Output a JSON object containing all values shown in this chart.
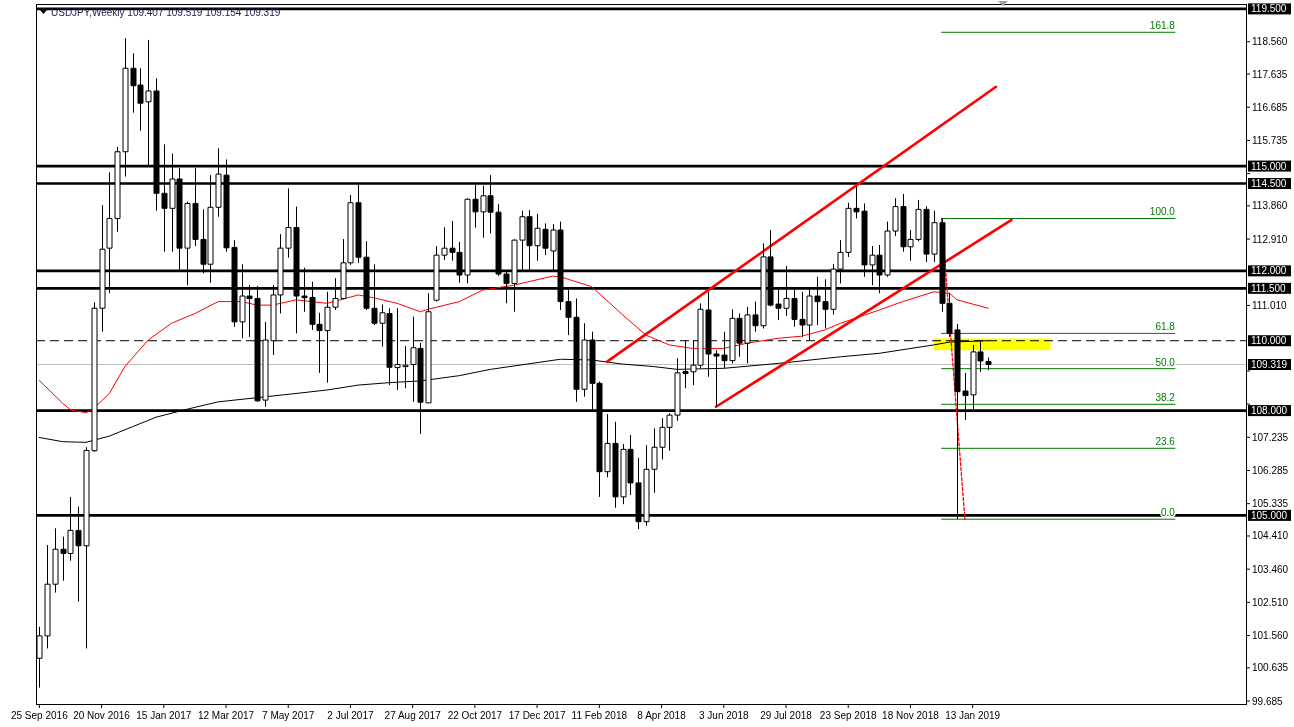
{
  "chart_data": {
    "type": "candlestick",
    "title": "USDJPY,Weekly 109.407 109.519 109.154 109.319",
    "color": "#000000",
    "xlim": [
      "2016-09-22",
      "2019-09-16"
    ],
    "ylim": [
      99.6,
      119.64
    ],
    "xticks": [
      {
        "value": "2016-09-25",
        "label": "25 Sep 2016"
      },
      {
        "value": "2016-11-20",
        "label": "20 Nov 2016"
      },
      {
        "value": "2017-01-15",
        "label": "15 Jan 2017"
      },
      {
        "value": "2017-03-12",
        "label": "12 Mar 2017"
      },
      {
        "value": "2017-05-07",
        "label": "7 May 2017"
      },
      {
        "value": "2017-07-02",
        "label": "2 Jul 2017"
      },
      {
        "value": "2017-08-27",
        "label": "27 Aug 2017"
      },
      {
        "value": "2017-10-22",
        "label": "22 Oct 2017"
      },
      {
        "value": "2017-12-17",
        "label": "17 Dec 2017"
      },
      {
        "value": "2018-02-11",
        "label": "11 Feb 2018"
      },
      {
        "value": "2018-04-08",
        "label": "8 Apr 2018"
      },
      {
        "value": "2018-06-03",
        "label": "3 Jun 2018"
      },
      {
        "value": "2018-07-29",
        "label": "29 Jul 2018"
      },
      {
        "value": "2018-09-23",
        "label": "23 Sep 2018"
      },
      {
        "value": "2018-11-18",
        "label": "18 Nov 2018"
      },
      {
        "value": "2019-01-13",
        "label": "13 Jan 2019"
      }
    ],
    "yticks": [
      {
        "value": 118.56,
        "label": "118.560"
      },
      {
        "value": 117.635,
        "label": "117.635"
      },
      {
        "value": 116.685,
        "label": "116.685"
      },
      {
        "value": 115.735,
        "label": "115.735"
      },
      {
        "value": 114.785,
        "label": null
      },
      {
        "value": 113.86,
        "label": "113.860"
      },
      {
        "value": 112.91,
        "label": "112.910"
      },
      {
        "value": 111.01,
        "label": "111.010"
      },
      {
        "value": 109.135,
        "label": null
      },
      {
        "value": 108.185,
        "label": null
      },
      {
        "value": 107.235,
        "label": "107.235"
      },
      {
        "value": 106.285,
        "label": "106.285"
      },
      {
        "value": 105.335,
        "label": "105.335"
      },
      {
        "value": 104.41,
        "label": "104.410"
      },
      {
        "value": 103.46,
        "label": "103.460"
      },
      {
        "value": 102.51,
        "label": "102.510"
      },
      {
        "value": 101.56,
        "label": "101.560"
      },
      {
        "value": 100.635,
        "label": "100.635"
      },
      {
        "value": 99.685,
        "label": "99.685"
      }
    ],
    "ref_lines": [
      {
        "axis": "y",
        "value": 119.5,
        "label": "119.500",
        "color": "#000000"
      },
      {
        "axis": "y",
        "value": 115,
        "label": "115.000",
        "color": "#000000"
      },
      {
        "axis": "y",
        "value": 114.5,
        "label": "114.500",
        "color": "#000000"
      },
      {
        "axis": "y",
        "value": 112,
        "label": "112.000",
        "color": "#000000"
      },
      {
        "axis": "y",
        "value": 111.5,
        "label": "111.500",
        "color": "#000000"
      },
      {
        "axis": "y",
        "value": 110,
        "label": "110.000",
        "color": "#000000",
        "line_style": "dashed"
      },
      {
        "axis": "y",
        "value": 109.319,
        "label": "109.319",
        "color": "#c0c0c0"
      },
      {
        "axis": "y",
        "value": 108,
        "label": "108.000",
        "color": "#000000"
      },
      {
        "axis": "y",
        "value": 105,
        "label": "105.000",
        "color": "#000000"
      }
    ],
    "x": [
      "2016-09-25",
      "2016-10-02",
      "2016-10-09",
      "2016-10-16",
      "2016-10-23",
      "2016-10-30",
      "2016-11-06",
      "2016-11-13",
      "2016-11-20",
      "2016-11-27",
      "2016-12-04",
      "2016-12-11",
      "2016-12-18",
      "2016-12-25",
      "2017-01-01",
      "2017-01-08",
      "2017-01-15",
      "2017-01-22",
      "2017-01-29",
      "2017-02-05",
      "2017-02-12",
      "2017-02-19",
      "2017-02-26",
      "2017-03-05",
      "2017-03-12",
      "2017-03-19",
      "2017-03-26",
      "2017-04-02",
      "2017-04-09",
      "2017-04-16",
      "2017-04-23",
      "2017-04-30",
      "2017-05-07",
      "2017-05-14",
      "2017-05-21",
      "2017-05-28",
      "2017-06-04",
      "2017-06-11",
      "2017-06-18",
      "2017-06-25",
      "2017-07-02",
      "2017-07-09",
      "2017-07-16",
      "2017-07-23",
      "2017-07-30",
      "2017-08-06",
      "2017-08-13",
      "2017-08-20",
      "2017-08-27",
      "2017-09-03",
      "2017-09-10",
      "2017-09-17",
      "2017-09-24",
      "2017-10-01",
      "2017-10-08",
      "2017-10-15",
      "2017-10-22",
      "2017-10-29",
      "2017-11-05",
      "2017-11-12",
      "2017-11-19",
      "2017-11-26",
      "2017-12-03",
      "2017-12-10",
      "2017-12-17",
      "2017-12-24",
      "2017-12-31",
      "2018-01-07",
      "2018-01-14",
      "2018-01-21",
      "2018-01-28",
      "2018-02-04",
      "2018-02-11",
      "2018-02-18",
      "2018-02-25",
      "2018-03-04",
      "2018-03-11",
      "2018-03-18",
      "2018-03-25",
      "2018-04-01",
      "2018-04-08",
      "2018-04-15",
      "2018-04-22",
      "2018-04-29",
      "2018-05-06",
      "2018-05-13",
      "2018-05-20",
      "2018-05-27",
      "2018-06-03",
      "2018-06-10",
      "2018-06-17",
      "2018-06-24",
      "2018-07-01",
      "2018-07-08",
      "2018-07-15",
      "2018-07-22",
      "2018-07-29",
      "2018-08-05",
      "2018-08-12",
      "2018-08-19",
      "2018-08-26",
      "2018-09-02",
      "2018-09-09",
      "2018-09-16",
      "2018-09-23",
      "2018-09-30",
      "2018-10-07",
      "2018-10-14",
      "2018-10-21",
      "2018-10-28",
      "2018-11-04",
      "2018-11-11",
      "2018-11-18",
      "2018-11-25",
      "2018-12-02",
      "2018-12-09",
      "2018-12-16",
      "2018-12-23",
      "2018-12-30",
      "2019-01-06",
      "2019-01-13",
      "2019-01-20",
      "2019-01-27"
    ],
    "ohlc": [
      [
        100.91,
        101.81,
        100.07,
        101.55
      ],
      [
        101.55,
        104.15,
        101.19,
        103.03
      ],
      [
        103.03,
        104.63,
        102.79,
        104.03
      ],
      [
        104.03,
        104.39,
        103.13,
        103.91
      ],
      [
        103.91,
        105.53,
        103.7,
        104.57
      ],
      [
        104.57,
        105.25,
        102.53,
        104.13
      ],
      [
        104.13,
        106.95,
        101.19,
        106.86
      ],
      [
        106.85,
        111.1,
        106.82,
        110.93
      ],
      [
        110.93,
        113.88,
        110.26,
        112.62
      ],
      [
        112.65,
        114.82,
        111.36,
        113.5
      ],
      [
        113.5,
        115.55,
        113.12,
        115.41
      ],
      [
        115.41,
        118.66,
        114.7,
        117.8
      ],
      [
        117.8,
        118.23,
        116.53,
        117.3
      ],
      [
        117.32,
        117.8,
        116.01,
        116.8
      ],
      [
        116.84,
        118.61,
        115.03,
        117.15
      ],
      [
        117.15,
        117.51,
        113.72,
        114.22
      ],
      [
        114.22,
        115.62,
        112.55,
        113.79
      ],
      [
        113.79,
        115.36,
        112.55,
        114.63
      ],
      [
        114.63,
        114.94,
        112.02,
        112.65
      ],
      [
        112.65,
        113.98,
        111.59,
        113.93
      ],
      [
        113.93,
        114.94,
        112.71,
        112.9
      ],
      [
        112.9,
        113.76,
        111.93,
        112.19
      ],
      [
        112.19,
        114.74,
        111.66,
        113.82
      ],
      [
        113.82,
        115.51,
        113.55,
        114.77
      ],
      [
        114.74,
        115.19,
        112.55,
        112.66
      ],
      [
        112.67,
        112.88,
        110.4,
        110.54
      ],
      [
        110.54,
        112.19,
        110.07,
        111.28
      ],
      [
        111.28,
        111.59,
        110.11,
        111.21
      ],
      [
        111.21,
        111.57,
        108.25,
        108.28
      ],
      [
        108.3,
        110.54,
        108.11,
        110.02
      ],
      [
        110.0,
        111.59,
        109.59,
        111.31
      ],
      [
        111.31,
        113.05,
        110.78,
        112.65
      ],
      [
        112.65,
        114.36,
        112.38,
        113.24
      ],
      [
        113.24,
        113.84,
        110.21,
        111.28
      ],
      [
        111.28,
        112.09,
        110.83,
        111.23
      ],
      [
        111.24,
        111.69,
        110.31,
        110.47
      ],
      [
        110.47,
        110.8,
        109.08,
        110.29
      ],
      [
        110.29,
        111.4,
        108.8,
        110.96
      ],
      [
        110.96,
        111.79,
        110.88,
        111.21
      ],
      [
        111.21,
        112.91,
        111.19,
        112.23
      ],
      [
        112.23,
        114.17,
        112.17,
        113.95
      ],
      [
        113.95,
        114.51,
        112.23,
        112.39
      ],
      [
        112.39,
        112.85,
        110.88,
        110.93
      ],
      [
        110.93,
        112.19,
        110.45,
        110.5
      ],
      [
        110.5,
        111.04,
        109.83,
        110.8
      ],
      [
        110.78,
        110.93,
        108.73,
        109.24
      ],
      [
        109.23,
        110.93,
        108.59,
        109.32
      ],
      [
        109.26,
        109.85,
        108.64,
        109.3
      ],
      [
        109.32,
        110.69,
        108.25,
        109.8
      ],
      [
        109.78,
        109.94,
        107.33,
        108.24
      ],
      [
        108.22,
        111.36,
        108.21,
        110.83
      ],
      [
        111.16,
        112.71,
        111.12,
        112.45
      ],
      [
        112.45,
        113.25,
        112.31,
        112.65
      ],
      [
        112.65,
        113.43,
        112.29,
        112.53
      ],
      [
        112.53,
        112.83,
        111.66,
        111.88
      ],
      [
        111.88,
        114.08,
        111.64,
        114.05
      ],
      [
        114.05,
        114.46,
        113.24,
        113.69
      ],
      [
        113.69,
        114.44,
        112.95,
        114.15
      ],
      [
        114.15,
        114.74,
        113.07,
        113.68
      ],
      [
        113.68,
        113.91,
        111.85,
        111.91
      ],
      [
        111.91,
        111.98,
        111.07,
        111.64
      ],
      [
        111.64,
        112.9,
        110.83,
        112.88
      ],
      [
        112.88,
        113.72,
        112.02,
        113.55
      ],
      [
        113.55,
        113.74,
        112.02,
        112.72
      ],
      [
        112.72,
        113.63,
        112.29,
        113.22
      ],
      [
        113.19,
        113.36,
        112.45,
        112.65
      ],
      [
        112.57,
        113.34,
        112.02,
        113.17
      ],
      [
        113.17,
        113.41,
        110.88,
        111.12
      ],
      [
        111.12,
        111.45,
        110.16,
        110.67
      ],
      [
        110.67,
        111.21,
        108.25,
        108.61
      ],
      [
        108.61,
        110.5,
        108.4,
        110.02
      ],
      [
        110.02,
        110.26,
        108.02,
        108.78
      ],
      [
        108.78,
        108.83,
        105.53,
        106.25
      ],
      [
        106.25,
        107.9,
        106.09,
        107.06
      ],
      [
        107.06,
        107.68,
        105.22,
        105.53
      ],
      [
        105.53,
        107.04,
        105.32,
        106.89
      ],
      [
        106.89,
        107.3,
        105.58,
        105.93
      ],
      [
        105.93,
        106.65,
        104.61,
        104.82
      ],
      [
        104.82,
        107.01,
        104.7,
        106.32
      ],
      [
        106.32,
        107.49,
        105.65,
        106.95
      ],
      [
        106.95,
        107.78,
        106.6,
        107.52
      ],
      [
        107.52,
        107.92,
        106.85,
        107.87
      ],
      [
        107.87,
        109.5,
        107.71,
        109.08
      ],
      [
        109.12,
        110.02,
        108.64,
        109.06
      ],
      [
        109.11,
        110.02,
        108.73,
        109.3
      ],
      [
        109.3,
        111.07,
        109.21,
        110.9
      ],
      [
        110.88,
        111.4,
        108.97,
        109.62
      ],
      [
        109.62,
        109.73,
        108.11,
        109.56
      ],
      [
        109.59,
        110.26,
        109.21,
        109.43
      ],
      [
        109.43,
        110.9,
        109.35,
        110.64
      ],
      [
        110.64,
        110.78,
        109.54,
        109.93
      ],
      [
        109.93,
        110.97,
        109.35,
        110.74
      ],
      [
        110.74,
        111.12,
        110.26,
        110.43
      ],
      [
        110.43,
        112.79,
        110.35,
        112.4
      ],
      [
        112.4,
        113.17,
        110.98,
        111.02
      ],
      [
        111.05,
        111.5,
        110.59,
        110.93
      ],
      [
        110.93,
        112.14,
        110.71,
        111.21
      ],
      [
        111.21,
        111.47,
        110.4,
        110.61
      ],
      [
        110.61,
        111.4,
        110.11,
        110.45
      ],
      [
        110.45,
        111.47,
        110.02,
        111.28
      ],
      [
        111.28,
        111.83,
        110.45,
        111.12
      ],
      [
        111.12,
        111.76,
        110.35,
        110.9
      ],
      [
        110.9,
        112.2,
        110.75,
        112.05
      ],
      [
        112.05,
        112.88,
        111.64,
        112.53
      ],
      [
        112.53,
        113.95,
        112.4,
        113.79
      ],
      [
        113.79,
        114.41,
        113.5,
        113.69
      ],
      [
        113.71,
        113.93,
        111.83,
        112.17
      ],
      [
        112.17,
        112.71,
        111.59,
        112.45
      ],
      [
        112.45,
        112.74,
        111.36,
        111.88
      ],
      [
        111.88,
        113.41,
        111.83,
        113.14
      ],
      [
        113.14,
        114.08,
        113.0,
        113.84
      ],
      [
        113.84,
        114.2,
        112.55,
        112.69
      ],
      [
        112.69,
        113.17,
        112.29,
        112.9
      ],
      [
        112.9,
        114.03,
        112.85,
        113.76
      ],
      [
        113.76,
        113.85,
        112.25,
        112.48
      ],
      [
        112.48,
        113.72,
        112.25,
        113.38
      ],
      [
        113.38,
        113.5,
        110.83,
        111.07
      ],
      [
        111.07,
        111.37,
        110.11,
        110.21
      ],
      [
        110.31,
        110.48,
        104.89,
        108.54
      ],
      [
        108.56,
        109.08,
        107.73,
        108.43
      ],
      [
        108.45,
        109.88,
        108.04,
        109.68
      ],
      [
        109.68,
        109.97,
        109.11,
        109.42
      ],
      [
        109.407,
        109.519,
        109.154,
        109.319
      ]
    ],
    "series": [
      {
        "type": "line",
        "x": [
          "2018-12-09",
          "2019-03-24"
        ],
        "values": [
          110.05,
          110.05
        ],
        "lower": [
          109.73,
          109.73
        ],
        "upper": [
          110.05,
          110.05
        ],
        "color": "#ffff00"
      },
      {
        "type": "line",
        "color": "#ff0000",
        "x": [
          "2016-09-25",
          "2016-10-16",
          "2016-10-23",
          "2016-11-06",
          "2016-11-13",
          "2016-11-27",
          "2016-12-11",
          "2017-01-01",
          "2017-01-22",
          "2017-02-12",
          "2017-03-05",
          "2017-03-26",
          "2017-04-09",
          "2017-04-23",
          "2017-05-14",
          "2017-05-28",
          "2017-06-11",
          "2017-07-09",
          "2017-07-23",
          "2017-08-13",
          "2017-09-03",
          "2017-09-10",
          "2017-10-08",
          "2017-10-29",
          "2017-11-26",
          "2017-12-31",
          "2018-01-07",
          "2018-02-04",
          "2018-03-04",
          "2018-03-25",
          "2018-04-15",
          "2018-05-06",
          "2018-06-03",
          "2018-06-24",
          "2018-07-22",
          "2018-08-12",
          "2018-09-02",
          "2018-09-16",
          "2018-10-21",
          "2018-11-11",
          "2018-12-09",
          "2018-12-23",
          "2018-12-30",
          "2019-01-13",
          "2019-01-27"
        ],
        "values": [
          108.86,
          108.21,
          108.02,
          107.94,
          108.06,
          108.49,
          109.26,
          110.02,
          110.5,
          110.78,
          111.12,
          111.12,
          111.02,
          111.02,
          111.17,
          111.12,
          111.07,
          111.31,
          111.23,
          111.07,
          110.83,
          110.9,
          111.12,
          111.45,
          111.59,
          111.85,
          111.83,
          111.55,
          110.74,
          110.16,
          109.88,
          109.78,
          109.78,
          109.93,
          110.07,
          110.13,
          110.31,
          110.5,
          110.88,
          111.12,
          111.4,
          111.36,
          111.17,
          111.05,
          110.93
        ]
      },
      {
        "type": "line",
        "color": "#000000",
        "x": [
          "2016-09-25",
          "2016-10-16",
          "2016-11-06",
          "2016-11-27",
          "2016-12-18",
          "2017-01-08",
          "2017-02-05",
          "2017-03-05",
          "2017-04-09",
          "2017-05-14",
          "2017-06-11",
          "2017-07-09",
          "2017-08-06",
          "2017-09-03",
          "2017-10-08",
          "2017-11-05",
          "2018-01-07",
          "2018-02-04",
          "2018-03-04",
          "2018-04-01",
          "2018-04-22",
          "2018-06-03",
          "2018-07-22",
          "2018-09-16",
          "2018-10-21",
          "2018-12-09",
          "2018-12-23",
          "2019-01-27"
        ],
        "values": [
          107.23,
          107.11,
          107.09,
          107.27,
          107.54,
          107.81,
          108.04,
          108.25,
          108.37,
          108.49,
          108.59,
          108.73,
          108.8,
          108.85,
          109.0,
          109.18,
          109.47,
          109.45,
          109.33,
          109.26,
          109.18,
          109.21,
          109.35,
          109.54,
          109.64,
          109.88,
          109.96,
          110.0
        ]
      },
      {
        "type": "line",
        "name": "161.8",
        "color": "#007a00",
        "x": [
          "2018-12-16",
          "2019-07-14"
        ],
        "values": [
          118.83,
          118.83
        ]
      },
      {
        "type": "line",
        "name": "100.0",
        "color": "#007a00",
        "x": [
          "2018-12-16",
          "2019-07-14"
        ],
        "values": [
          113.5,
          113.5
        ]
      },
      {
        "type": "line",
        "name": "61.8",
        "color": "#007a00",
        "x": [
          "2018-12-16",
          "2019-07-14"
        ],
        "values": [
          110.21,
          110.21
        ]
      },
      {
        "type": "line",
        "name": "50.0",
        "color": "#007a00",
        "x": [
          "2018-12-16",
          "2019-07-14"
        ],
        "values": [
          109.2,
          109.2
        ]
      },
      {
        "type": "line",
        "name": "38.2",
        "color": "#007a00",
        "x": [
          "2018-12-16",
          "2019-07-14"
        ],
        "values": [
          108.18,
          108.18
        ]
      },
      {
        "type": "line",
        "name": "23.6",
        "color": "#007a00",
        "x": [
          "2018-12-16",
          "2019-07-14"
        ],
        "values": [
          106.92,
          106.92
        ]
      },
      {
        "type": "line",
        "name": "0.0",
        "color": "#007a00",
        "x": [
          "2018-12-16",
          "2019-07-14"
        ],
        "values": [
          104.89,
          104.89
        ]
      },
      {
        "type": "line",
        "color": "#ff0000",
        "x": [
          "2018-02-18",
          "2019-02-03"
        ],
        "values": [
          109.4,
          117.27
        ]
      },
      {
        "type": "line",
        "color": "#ff0000",
        "x": [
          "2018-05-27",
          "2019-02-17"
        ],
        "values": [
          108.11,
          113.46
        ]
      },
      {
        "type": "line",
        "color": "#ff0000",
        "line_style": "dashed",
        "x": [
          "2018-12-16",
          "2019-01-06"
        ],
        "values": [
          113.5,
          104.89
        ]
      }
    ]
  }
}
